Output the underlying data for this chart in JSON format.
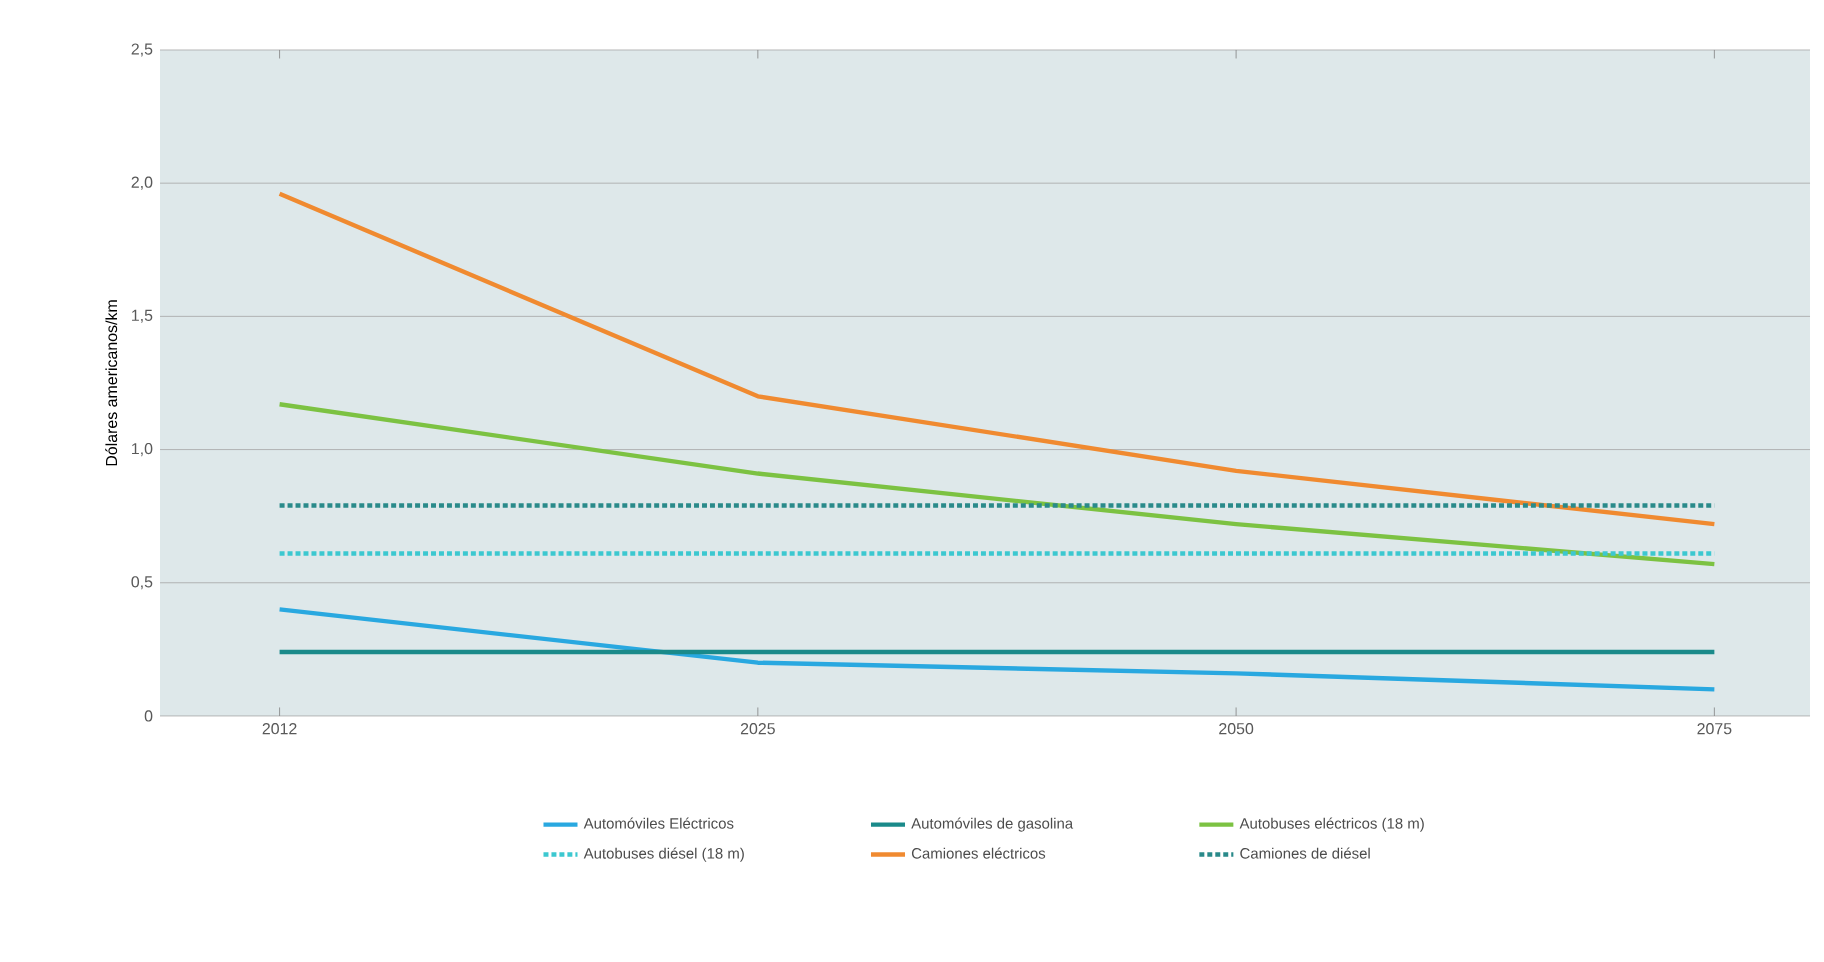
{
  "chart_data": {
    "type": "line",
    "ylabel": "Dólares americanos/km",
    "categories": [
      "2012",
      "2025",
      "2050",
      "2075"
    ],
    "ylim": [
      0,
      2.5
    ],
    "yticks": [
      0,
      {
        "value": 0.5,
        "label": "0,5"
      },
      {
        "value": 1.0,
        "label": "1,0"
      },
      {
        "value": 1.5,
        "label": "1,5"
      },
      {
        "value": 2.0,
        "label": "2,0"
      },
      {
        "value": 2.5,
        "label": "2,5"
      }
    ],
    "grid": "y",
    "legend": "bottom",
    "marker": "none",
    "series": [
      {
        "name": "Automóviles Eléctricos",
        "color": "#29a8e0",
        "line_style": "solid",
        "values": [
          0.4,
          0.2,
          0.16,
          0.1
        ]
      },
      {
        "name": "Automóviles de gasolina",
        "color": "#1a8a8a",
        "line_style": "solid",
        "values": [
          0.24,
          0.24,
          0.24,
          0.24
        ]
      },
      {
        "name": "Autobuses eléctricos (18 m)",
        "color": "#7cc242",
        "line_style": "solid",
        "values": [
          1.17,
          0.91,
          0.72,
          0.57
        ]
      },
      {
        "name": "Autobuses diésel (18 m)",
        "color": "#3cc8d0",
        "line_style": "dotted",
        "values": [
          0.61,
          0.61,
          0.61,
          0.61
        ]
      },
      {
        "name": "Camiones eléctricos",
        "color": "#f08a30",
        "line_style": "solid",
        "values": [
          1.96,
          1.2,
          0.92,
          0.72
        ]
      },
      {
        "name": "Camiones de diésel",
        "color": "#2a8a8a",
        "line_style": "dotted",
        "values": [
          0.79,
          0.79,
          0.79,
          0.79
        ]
      }
    ]
  }
}
